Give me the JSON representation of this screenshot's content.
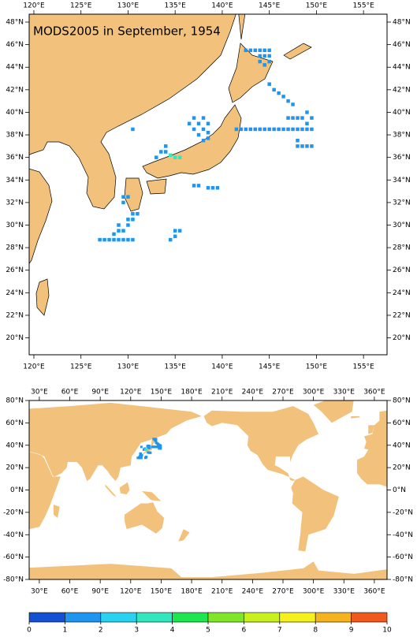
{
  "title": "MODS2005 in September, 1954",
  "regional_map": {
    "xlim": [
      119.5,
      157.5
    ],
    "ylim": [
      18.5,
      48.7
    ],
    "xticks": [
      {
        "value": 120,
        "label": "120°E"
      },
      {
        "value": 125,
        "label": "125°E"
      },
      {
        "value": 130,
        "label": "130°E"
      },
      {
        "value": 135,
        "label": "135°E"
      },
      {
        "value": 140,
        "label": "140°E"
      },
      {
        "value": 145,
        "label": "145°E"
      },
      {
        "value": 150,
        "label": "150°E"
      },
      {
        "value": 155,
        "label": "155°E"
      }
    ],
    "yticks": [
      {
        "value": 20,
        "label": "20°N"
      },
      {
        "value": 22,
        "label": "22°N"
      },
      {
        "value": 24,
        "label": "24°N"
      },
      {
        "value": 26,
        "label": "26°N"
      },
      {
        "value": 28,
        "label": "28°N"
      },
      {
        "value": 30,
        "label": "30°N"
      },
      {
        "value": 32,
        "label": "32°N"
      },
      {
        "value": 34,
        "label": "34°N"
      },
      {
        "value": 36,
        "label": "36°N"
      },
      {
        "value": 38,
        "label": "38°N"
      },
      {
        "value": 40,
        "label": "40°N"
      },
      {
        "value": 42,
        "label": "42°N"
      },
      {
        "value": 44,
        "label": "44°N"
      },
      {
        "value": 46,
        "label": "46°N"
      },
      {
        "value": 48,
        "label": "48°N"
      }
    ]
  },
  "global_map": {
    "xlim": [
      20,
      372.5
    ],
    "ylim": [
      -80,
      80
    ],
    "xticks": [
      {
        "value": 30,
        "label": "30°E"
      },
      {
        "value": 60,
        "label": "60°E"
      },
      {
        "value": 90,
        "label": "90°E"
      },
      {
        "value": 120,
        "label": "120°E"
      },
      {
        "value": 150,
        "label": "150°E"
      },
      {
        "value": 180,
        "label": "180°E"
      },
      {
        "value": 210,
        "label": "210°E"
      },
      {
        "value": 240,
        "label": "240°E"
      },
      {
        "value": 270,
        "label": "270°E"
      },
      {
        "value": 300,
        "label": "300°E"
      },
      {
        "value": 330,
        "label": "330°E"
      },
      {
        "value": 360,
        "label": "360°E"
      }
    ],
    "yticks": [
      {
        "value": 80,
        "label": "80°N"
      },
      {
        "value": 60,
        "label": "60°N"
      },
      {
        "value": 40,
        "label": "40°N"
      },
      {
        "value": 20,
        "label": "20°N"
      },
      {
        "value": 0,
        "label": "0°N"
      },
      {
        "value": -20,
        "label": "-20°N"
      },
      {
        "value": -40,
        "label": "-40°N"
      },
      {
        "value": -60,
        "label": "-60°N"
      },
      {
        "value": -80,
        "label": "-80°N"
      }
    ]
  },
  "colorbar": {
    "ticks": [
      0,
      1,
      2,
      3,
      4,
      5,
      6,
      7,
      8,
      9,
      10
    ],
    "colors": [
      "#1450d2",
      "#1e96f0",
      "#28d2f0",
      "#32e6be",
      "#1ee650",
      "#82e628",
      "#c8f01e",
      "#f5f01e",
      "#f5b41e",
      "#f05a1e"
    ]
  },
  "points": [
    {
      "lon": 142.5,
      "lat": 45.5,
      "value": 1
    },
    {
      "lon": 143,
      "lat": 45.5,
      "value": 1
    },
    {
      "lon": 143.5,
      "lat": 45.5,
      "value": 1
    },
    {
      "lon": 144,
      "lat": 45.5,
      "value": 1
    },
    {
      "lon": 144.5,
      "lat": 45.5,
      "value": 1
    },
    {
      "lon": 145,
      "lat": 45.5,
      "value": 1
    },
    {
      "lon": 144,
      "lat": 45,
      "value": 1
    },
    {
      "lon": 144.5,
      "lat": 45,
      "value": 1
    },
    {
      "lon": 145,
      "lat": 45,
      "value": 1
    },
    {
      "lon": 144,
      "lat": 44.5,
      "value": 1
    },
    {
      "lon": 145,
      "lat": 44.5,
      "value": 1
    },
    {
      "lon": 144.5,
      "lat": 44.2,
      "value": 1
    },
    {
      "lon": 145,
      "lat": 42.5,
      "value": 1
    },
    {
      "lon": 145.5,
      "lat": 42,
      "value": 1
    },
    {
      "lon": 146,
      "lat": 41.7,
      "value": 1
    },
    {
      "lon": 146.5,
      "lat": 41.4,
      "value": 1
    },
    {
      "lon": 147,
      "lat": 41,
      "value": 1
    },
    {
      "lon": 147.5,
      "lat": 40.7,
      "value": 1
    },
    {
      "lon": 141.5,
      "lat": 38.5,
      "value": 1
    },
    {
      "lon": 142,
      "lat": 38.5,
      "value": 1
    },
    {
      "lon": 142.5,
      "lat": 38.5,
      "value": 1
    },
    {
      "lon": 143,
      "lat": 38.5,
      "value": 1
    },
    {
      "lon": 143.5,
      "lat": 38.5,
      "value": 1
    },
    {
      "lon": 144,
      "lat": 38.5,
      "value": 1
    },
    {
      "lon": 144.5,
      "lat": 38.5,
      "value": 1
    },
    {
      "lon": 145,
      "lat": 38.5,
      "value": 1
    },
    {
      "lon": 145.5,
      "lat": 38.5,
      "value": 1
    },
    {
      "lon": 146,
      "lat": 38.5,
      "value": 1
    },
    {
      "lon": 146.5,
      "lat": 38.5,
      "value": 1
    },
    {
      "lon": 147,
      "lat": 38.5,
      "value": 1
    },
    {
      "lon": 147.5,
      "lat": 38.5,
      "value": 1
    },
    {
      "lon": 148,
      "lat": 38.5,
      "value": 1
    },
    {
      "lon": 148.5,
      "lat": 38.5,
      "value": 1
    },
    {
      "lon": 149,
      "lat": 38.5,
      "value": 1
    },
    {
      "lon": 149.5,
      "lat": 38.5,
      "value": 1
    },
    {
      "lon": 147,
      "lat": 39.5,
      "value": 1
    },
    {
      "lon": 147.5,
      "lat": 39.5,
      "value": 1
    },
    {
      "lon": 148,
      "lat": 39.5,
      "value": 1
    },
    {
      "lon": 148.5,
      "lat": 39.5,
      "value": 1
    },
    {
      "lon": 149,
      "lat": 40,
      "value": 1
    },
    {
      "lon": 149.5,
      "lat": 39.5,
      "value": 1
    },
    {
      "lon": 149,
      "lat": 39,
      "value": 1
    },
    {
      "lon": 148,
      "lat": 37,
      "value": 1
    },
    {
      "lon": 148.5,
      "lat": 37,
      "value": 1
    },
    {
      "lon": 149,
      "lat": 37,
      "value": 1
    },
    {
      "lon": 149.5,
      "lat": 37,
      "value": 1
    },
    {
      "lon": 148,
      "lat": 37.5,
      "value": 1
    },
    {
      "lon": 136.5,
      "lat": 39,
      "value": 1
    },
    {
      "lon": 137,
      "lat": 39.5,
      "value": 1
    },
    {
      "lon": 137.5,
      "lat": 39,
      "value": 1
    },
    {
      "lon": 138,
      "lat": 38.5,
      "value": 1
    },
    {
      "lon": 137.5,
      "lat": 38,
      "value": 1
    },
    {
      "lon": 138,
      "lat": 37.5,
      "value": 1
    },
    {
      "lon": 138.5,
      "lat": 37.7,
      "value": 1
    },
    {
      "lon": 138.5,
      "lat": 38.2,
      "value": 1
    },
    {
      "lon": 137,
      "lat": 38.5,
      "value": 1
    },
    {
      "lon": 138,
      "lat": 39.5,
      "value": 1
    },
    {
      "lon": 138.5,
      "lat": 39,
      "value": 1
    },
    {
      "lon": 130.5,
      "lat": 38.5,
      "value": 1
    },
    {
      "lon": 133,
      "lat": 36,
      "value": 1
    },
    {
      "lon": 133.5,
      "lat": 36.5,
      "value": 1
    },
    {
      "lon": 134,
      "lat": 37,
      "value": 1
    },
    {
      "lon": 134,
      "lat": 36.5,
      "value": 1
    },
    {
      "lon": 134.5,
      "lat": 36.2,
      "value": 3
    },
    {
      "lon": 135,
      "lat": 36,
      "value": 3
    },
    {
      "lon": 135.5,
      "lat": 36,
      "value": 3
    },
    {
      "lon": 137,
      "lat": 33.5,
      "value": 1
    },
    {
      "lon": 137.5,
      "lat": 33.5,
      "value": 1
    },
    {
      "lon": 138.5,
      "lat": 33.3,
      "value": 1
    },
    {
      "lon": 139,
      "lat": 33.3,
      "value": 1
    },
    {
      "lon": 139.5,
      "lat": 33.3,
      "value": 1
    },
    {
      "lon": 129.5,
      "lat": 32.5,
      "value": 1
    },
    {
      "lon": 129.5,
      "lat": 32,
      "value": 1
    },
    {
      "lon": 130,
      "lat": 32.5,
      "value": 1
    },
    {
      "lon": 130.5,
      "lat": 31,
      "value": 1
    },
    {
      "lon": 130,
      "lat": 30.5,
      "value": 1
    },
    {
      "lon": 130,
      "lat": 30,
      "value": 1
    },
    {
      "lon": 129.5,
      "lat": 29.5,
      "value": 1
    },
    {
      "lon": 129,
      "lat": 29.5,
      "value": 1
    },
    {
      "lon": 128.5,
      "lat": 29.2,
      "value": 1
    },
    {
      "lon": 129,
      "lat": 30,
      "value": 1
    },
    {
      "lon": 130.5,
      "lat": 30.5,
      "value": 1
    },
    {
      "lon": 131,
      "lat": 31,
      "value": 1
    },
    {
      "lon": 127,
      "lat": 28.7,
      "value": 1
    },
    {
      "lon": 127.5,
      "lat": 28.7,
      "value": 1
    },
    {
      "lon": 128,
      "lat": 28.7,
      "value": 1
    },
    {
      "lon": 128.5,
      "lat": 28.7,
      "value": 1
    },
    {
      "lon": 129,
      "lat": 28.7,
      "value": 1
    },
    {
      "lon": 129.5,
      "lat": 28.7,
      "value": 1
    },
    {
      "lon": 130,
      "lat": 28.7,
      "value": 1
    },
    {
      "lon": 130.5,
      "lat": 28.7,
      "value": 1
    },
    {
      "lon": 134.5,
      "lat": 28.7,
      "value": 1
    },
    {
      "lon": 135,
      "lat": 29,
      "value": 1
    },
    {
      "lon": 135,
      "lat": 29.5,
      "value": 1
    },
    {
      "lon": 135.5,
      "lat": 29.5,
      "value": 1
    }
  ]
}
